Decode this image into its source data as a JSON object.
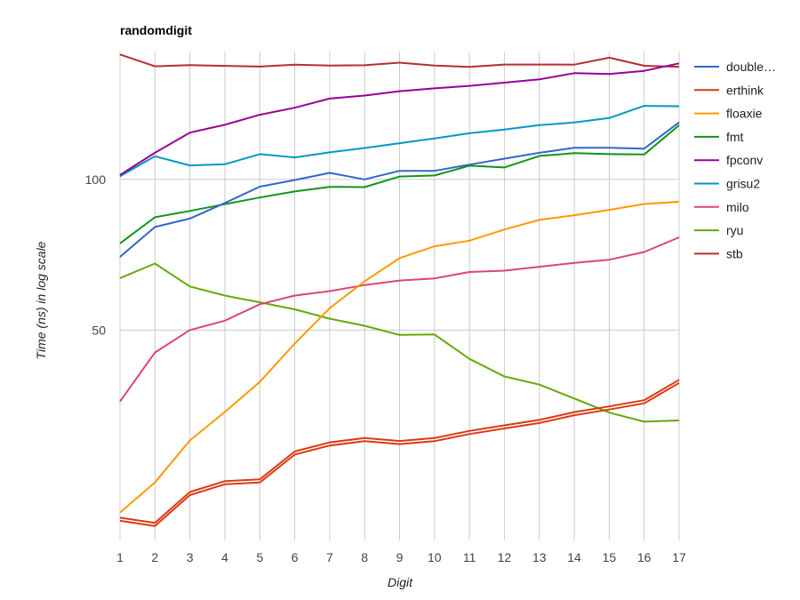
{
  "chart_data": {
    "type": "line",
    "title": "randomdigit",
    "xlabel": "Digit",
    "ylabel": "Time (ns) in log scale",
    "yscale": "log",
    "ylim": [
      19,
      180
    ],
    "y_ticks": [
      50,
      100
    ],
    "grid": true,
    "legend_position": "right",
    "x": [
      1,
      2,
      3,
      4,
      5,
      6,
      7,
      8,
      9,
      10,
      11,
      12,
      13,
      14,
      15,
      16,
      17
    ],
    "series": [
      {
        "name": "double…",
        "color": "#3366cc",
        "values": [
          70,
          80.3,
          83.5,
          89.7,
          96.7,
          99.7,
          103,
          100,
          104,
          104,
          107,
          110,
          113,
          115.6,
          115.6,
          115.2,
          130
        ]
      },
      {
        "name": "erthink",
        "color": "#dc3912",
        "double": true,
        "values": [
          20.8,
          20.3,
          23.4,
          24.6,
          24.8,
          28.2,
          29.4,
          30,
          29.6,
          30,
          31,
          31.8,
          32.6,
          33.8,
          34.7,
          35.7,
          39.2
        ]
      },
      {
        "name": "floaxie",
        "color": "#ff9900",
        "values": [
          21.6,
          24.8,
          30.1,
          34.3,
          39.4,
          47,
          55.3,
          62.6,
          69.6,
          73.5,
          75.4,
          79.4,
          83,
          84.8,
          86.9,
          89.3,
          90.2
        ]
      },
      {
        "name": "fmt",
        "color": "#109618",
        "values": [
          74.5,
          84,
          86.5,
          89.2,
          92,
          94.6,
          96.6,
          96.5,
          101.3,
          101.8,
          106.5,
          105.6,
          111.4,
          112.8,
          112.3,
          112.1,
          128.3
        ]
      },
      {
        "name": "fpconv",
        "color": "#990099",
        "values": [
          102,
          113,
          124,
          128.5,
          134.6,
          139,
          145,
          147,
          150,
          152,
          153.7,
          156,
          158.4,
          163,
          162.4,
          164.7,
          170.5
        ]
      },
      {
        "name": "grisu2",
        "color": "#0099c6",
        "values": [
          101.4,
          111.2,
          106.6,
          107.2,
          112.3,
          110.6,
          113.2,
          115.5,
          118.1,
          120.7,
          123.6,
          125.7,
          128.3,
          129.9,
          132.6,
          140.2,
          140
        ]
      },
      {
        "name": "milo",
        "color": "#dd4477",
        "values": [
          36,
          45.1,
          50,
          52.2,
          56.3,
          58.6,
          59.8,
          61.5,
          62.8,
          63.4,
          65.3,
          65.7,
          66.9,
          68.1,
          69.1,
          71.6,
          76.6
        ]
      },
      {
        "name": "ryu",
        "color": "#66aa00",
        "values": [
          63.5,
          67.9,
          61.1,
          58.6,
          56.8,
          55,
          52.7,
          51,
          48.9,
          49,
          43.8,
          40.4,
          38.9,
          36.5,
          34.2,
          32.8,
          33
        ]
      },
      {
        "name": "stb",
        "color": "#b82e2e",
        "values": [
          177.6,
          168.2,
          169.1,
          168.5,
          168,
          169.4,
          168.8,
          169,
          171,
          168.8,
          167.7,
          169.6,
          169.6,
          169.5,
          175,
          168.6,
          167.8
        ]
      }
    ]
  }
}
